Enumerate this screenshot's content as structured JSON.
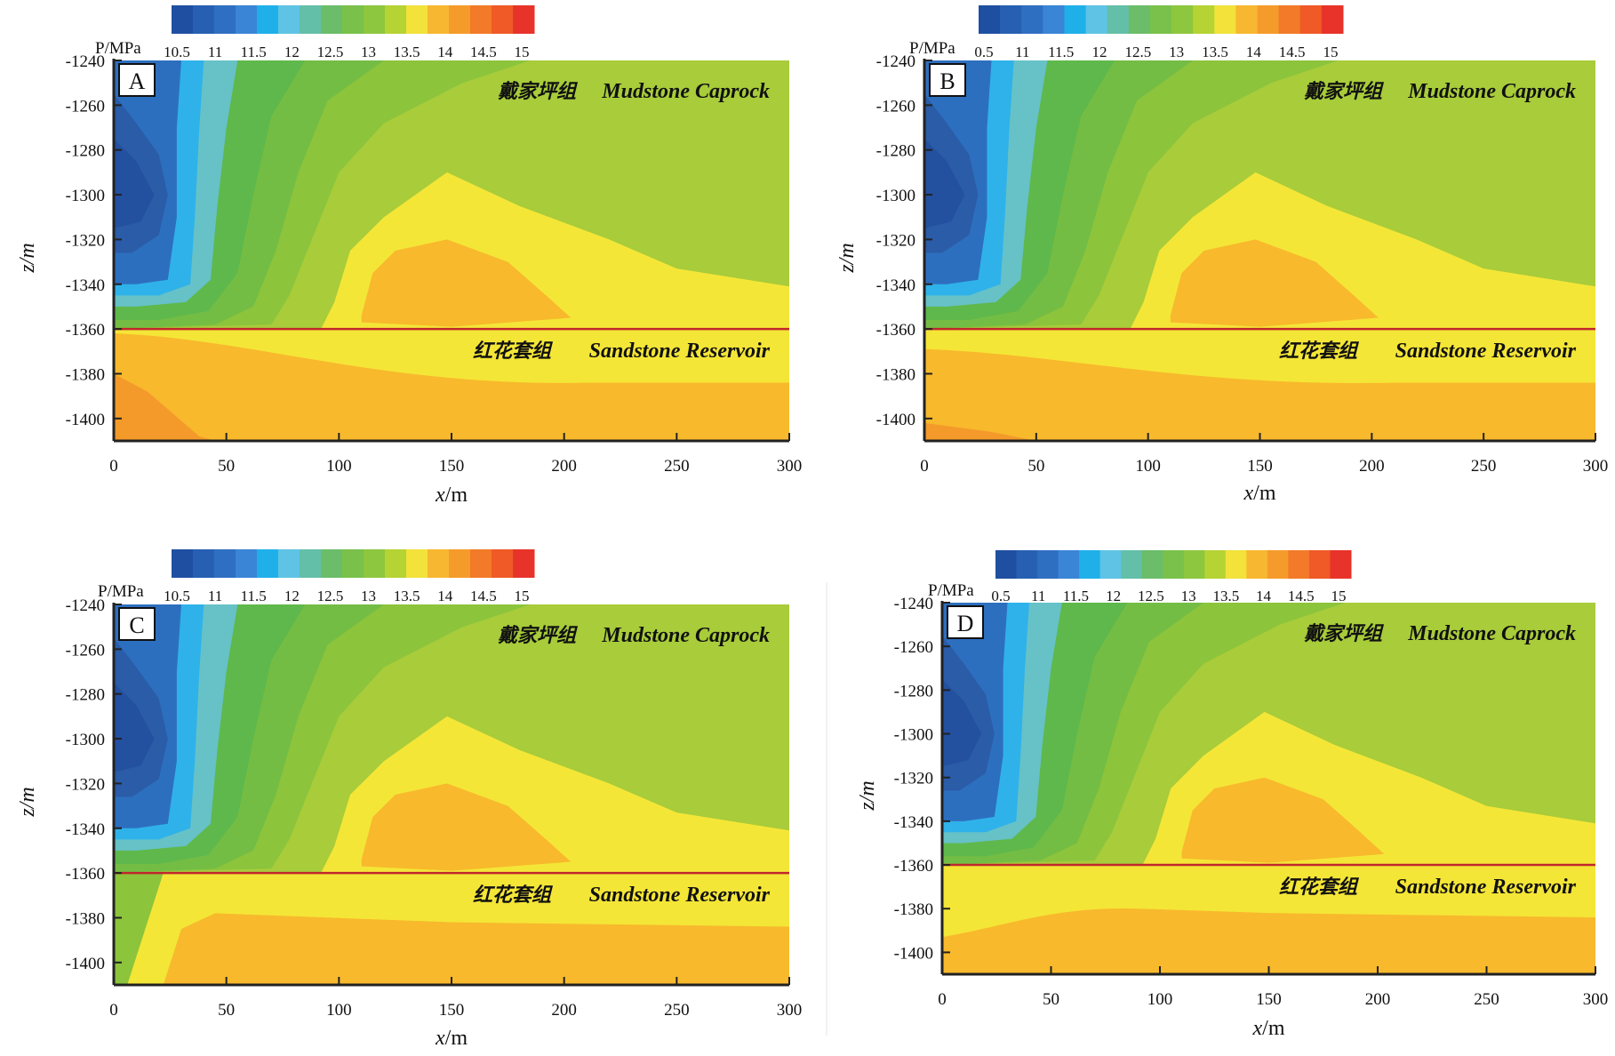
{
  "chart_data": [
    {
      "type": "heatmap",
      "panel_label": "A",
      "xlabel_var": "x",
      "xlabel_unit": "/m",
      "ylabel": "z/m",
      "xlim": [
        0,
        300
      ],
      "ylim": [
        -1410,
        -1240
      ],
      "x_ticks": [
        0,
        50,
        100,
        150,
        200,
        250,
        300
      ],
      "y_ticks": [
        -1240,
        -1260,
        -1280,
        -1300,
        -1320,
        -1340,
        -1360,
        -1380,
        -1400
      ],
      "colorbar_title": "P/MPa",
      "colorbar_ticks": [
        "10.5",
        "11",
        "11.5",
        "12",
        "12.5",
        "13",
        "13.5",
        "14",
        "14.5",
        "15"
      ],
      "upper_label_cn": "戴家坪组",
      "upper_label_en": "Mudstone Caprock",
      "lower_label_cn": "红花套组",
      "lower_label_en": "Sandstone Reservoir",
      "interface_z": -1360,
      "reservoir_zones": [
        {
          "z_top_left": -1362,
          "z_top_right": -1384,
          "level": 14
        },
        {
          "z_top_left": -1380,
          "z_top_right": -1410,
          "level": 14.5
        }
      ]
    },
    {
      "type": "heatmap",
      "panel_label": "B",
      "xlabel_var": "x",
      "xlabel_unit": "/m",
      "ylabel": "z/m",
      "xlim": [
        0,
        300
      ],
      "ylim": [
        -1410,
        -1240
      ],
      "x_ticks": [
        0,
        50,
        100,
        150,
        200,
        250,
        300
      ],
      "y_ticks": [
        -1240,
        -1260,
        -1280,
        -1300,
        -1320,
        -1340,
        -1360,
        -1380,
        -1400
      ],
      "colorbar_title": "P/MPa",
      "colorbar_ticks": [
        "0.5",
        "11",
        "11.5",
        "12",
        "12.5",
        "13",
        "13.5",
        "14",
        "14.5",
        "15"
      ],
      "upper_label_cn": "戴家坪组",
      "upper_label_en": "Mudstone Caprock",
      "lower_label_cn": "红花套组",
      "lower_label_en": "Sandstone Reservoir",
      "interface_z": -1360,
      "reservoir_zones": [
        {
          "z_top_left": -1369,
          "z_top_right": -1384,
          "level": 14
        },
        {
          "z_top_left": -1402,
          "z_top_right": -1410,
          "level": 14.5
        }
      ]
    },
    {
      "type": "heatmap",
      "panel_label": "C",
      "xlabel_var": "x",
      "xlabel_unit": "/m",
      "ylabel": "z/m",
      "xlim": [
        0,
        300
      ],
      "ylim": [
        -1410,
        -1240
      ],
      "x_ticks": [
        0,
        50,
        100,
        150,
        200,
        250,
        300
      ],
      "y_ticks": [
        -1240,
        -1260,
        -1280,
        -1300,
        -1320,
        -1340,
        -1360,
        -1380,
        -1400
      ],
      "colorbar_title": "P/MPa",
      "colorbar_ticks": [
        "10.5",
        "11",
        "11.5",
        "12",
        "12.5",
        "13",
        "13.5",
        "14",
        "14.5",
        "15"
      ],
      "upper_label_cn": "戴家坪组",
      "upper_label_en": "Mudstone Caprock",
      "lower_label_cn": "红花套组",
      "lower_label_en": "Sandstone Reservoir",
      "interface_z": -1360,
      "reservoir_zones": [
        {
          "z_top_left": -1378,
          "z_top_right": -1384,
          "level": 14
        }
      ]
    },
    {
      "type": "heatmap",
      "panel_label": "D",
      "xlabel_var": "x",
      "xlabel_unit": "/m",
      "ylabel": "z/m",
      "xlim": [
        0,
        300
      ],
      "ylim": [
        -1410,
        -1240
      ],
      "x_ticks": [
        0,
        50,
        100,
        150,
        200,
        250,
        300
      ],
      "y_ticks": [
        -1240,
        -1260,
        -1280,
        -1300,
        -1320,
        -1340,
        -1360,
        -1380,
        -1400
      ],
      "colorbar_title": "P/MPa",
      "colorbar_ticks": [
        "0.5",
        "11",
        "11.5",
        "12",
        "12.5",
        "13",
        "13.5",
        "14",
        "14.5",
        "15"
      ],
      "upper_label_cn": "戴家坪组",
      "upper_label_en": "Mudstone Caprock",
      "lower_label_cn": "红花套组",
      "lower_label_en": "Sandstone Reservoir",
      "interface_z": -1360,
      "reservoir_zones": [
        {
          "z_top_left": -1393,
          "z_top_right": -1384,
          "level": 14
        }
      ]
    }
  ],
  "colorbar_colors": [
    "#1f4fa0",
    "#2760b3",
    "#2f6fc2",
    "#3a85d6",
    "#1fb0ea",
    "#5fc3e5",
    "#63bfa8",
    "#6bbd6a",
    "#79c14a",
    "#8dc63f",
    "#b6d334",
    "#f2e23a",
    "#f7b731",
    "#f59b2b",
    "#f27a28",
    "#ef5a27",
    "#e8332a"
  ],
  "field_colors": {
    "bg": "#a8cc3a",
    "c13": "#8cc43c",
    "c125": "#74bd44",
    "c12": "#5fb84b",
    "c115": "#66c2c7",
    "c11": "#2fb2ea",
    "c105": "#2d6fbf",
    "c10": "#2a5ca8",
    "c95": "#2450a0",
    "yellow": "#f4e637",
    "orange": "#f8b92c",
    "dark_orange": "#f39a2a",
    "interface": "#c0272d"
  }
}
